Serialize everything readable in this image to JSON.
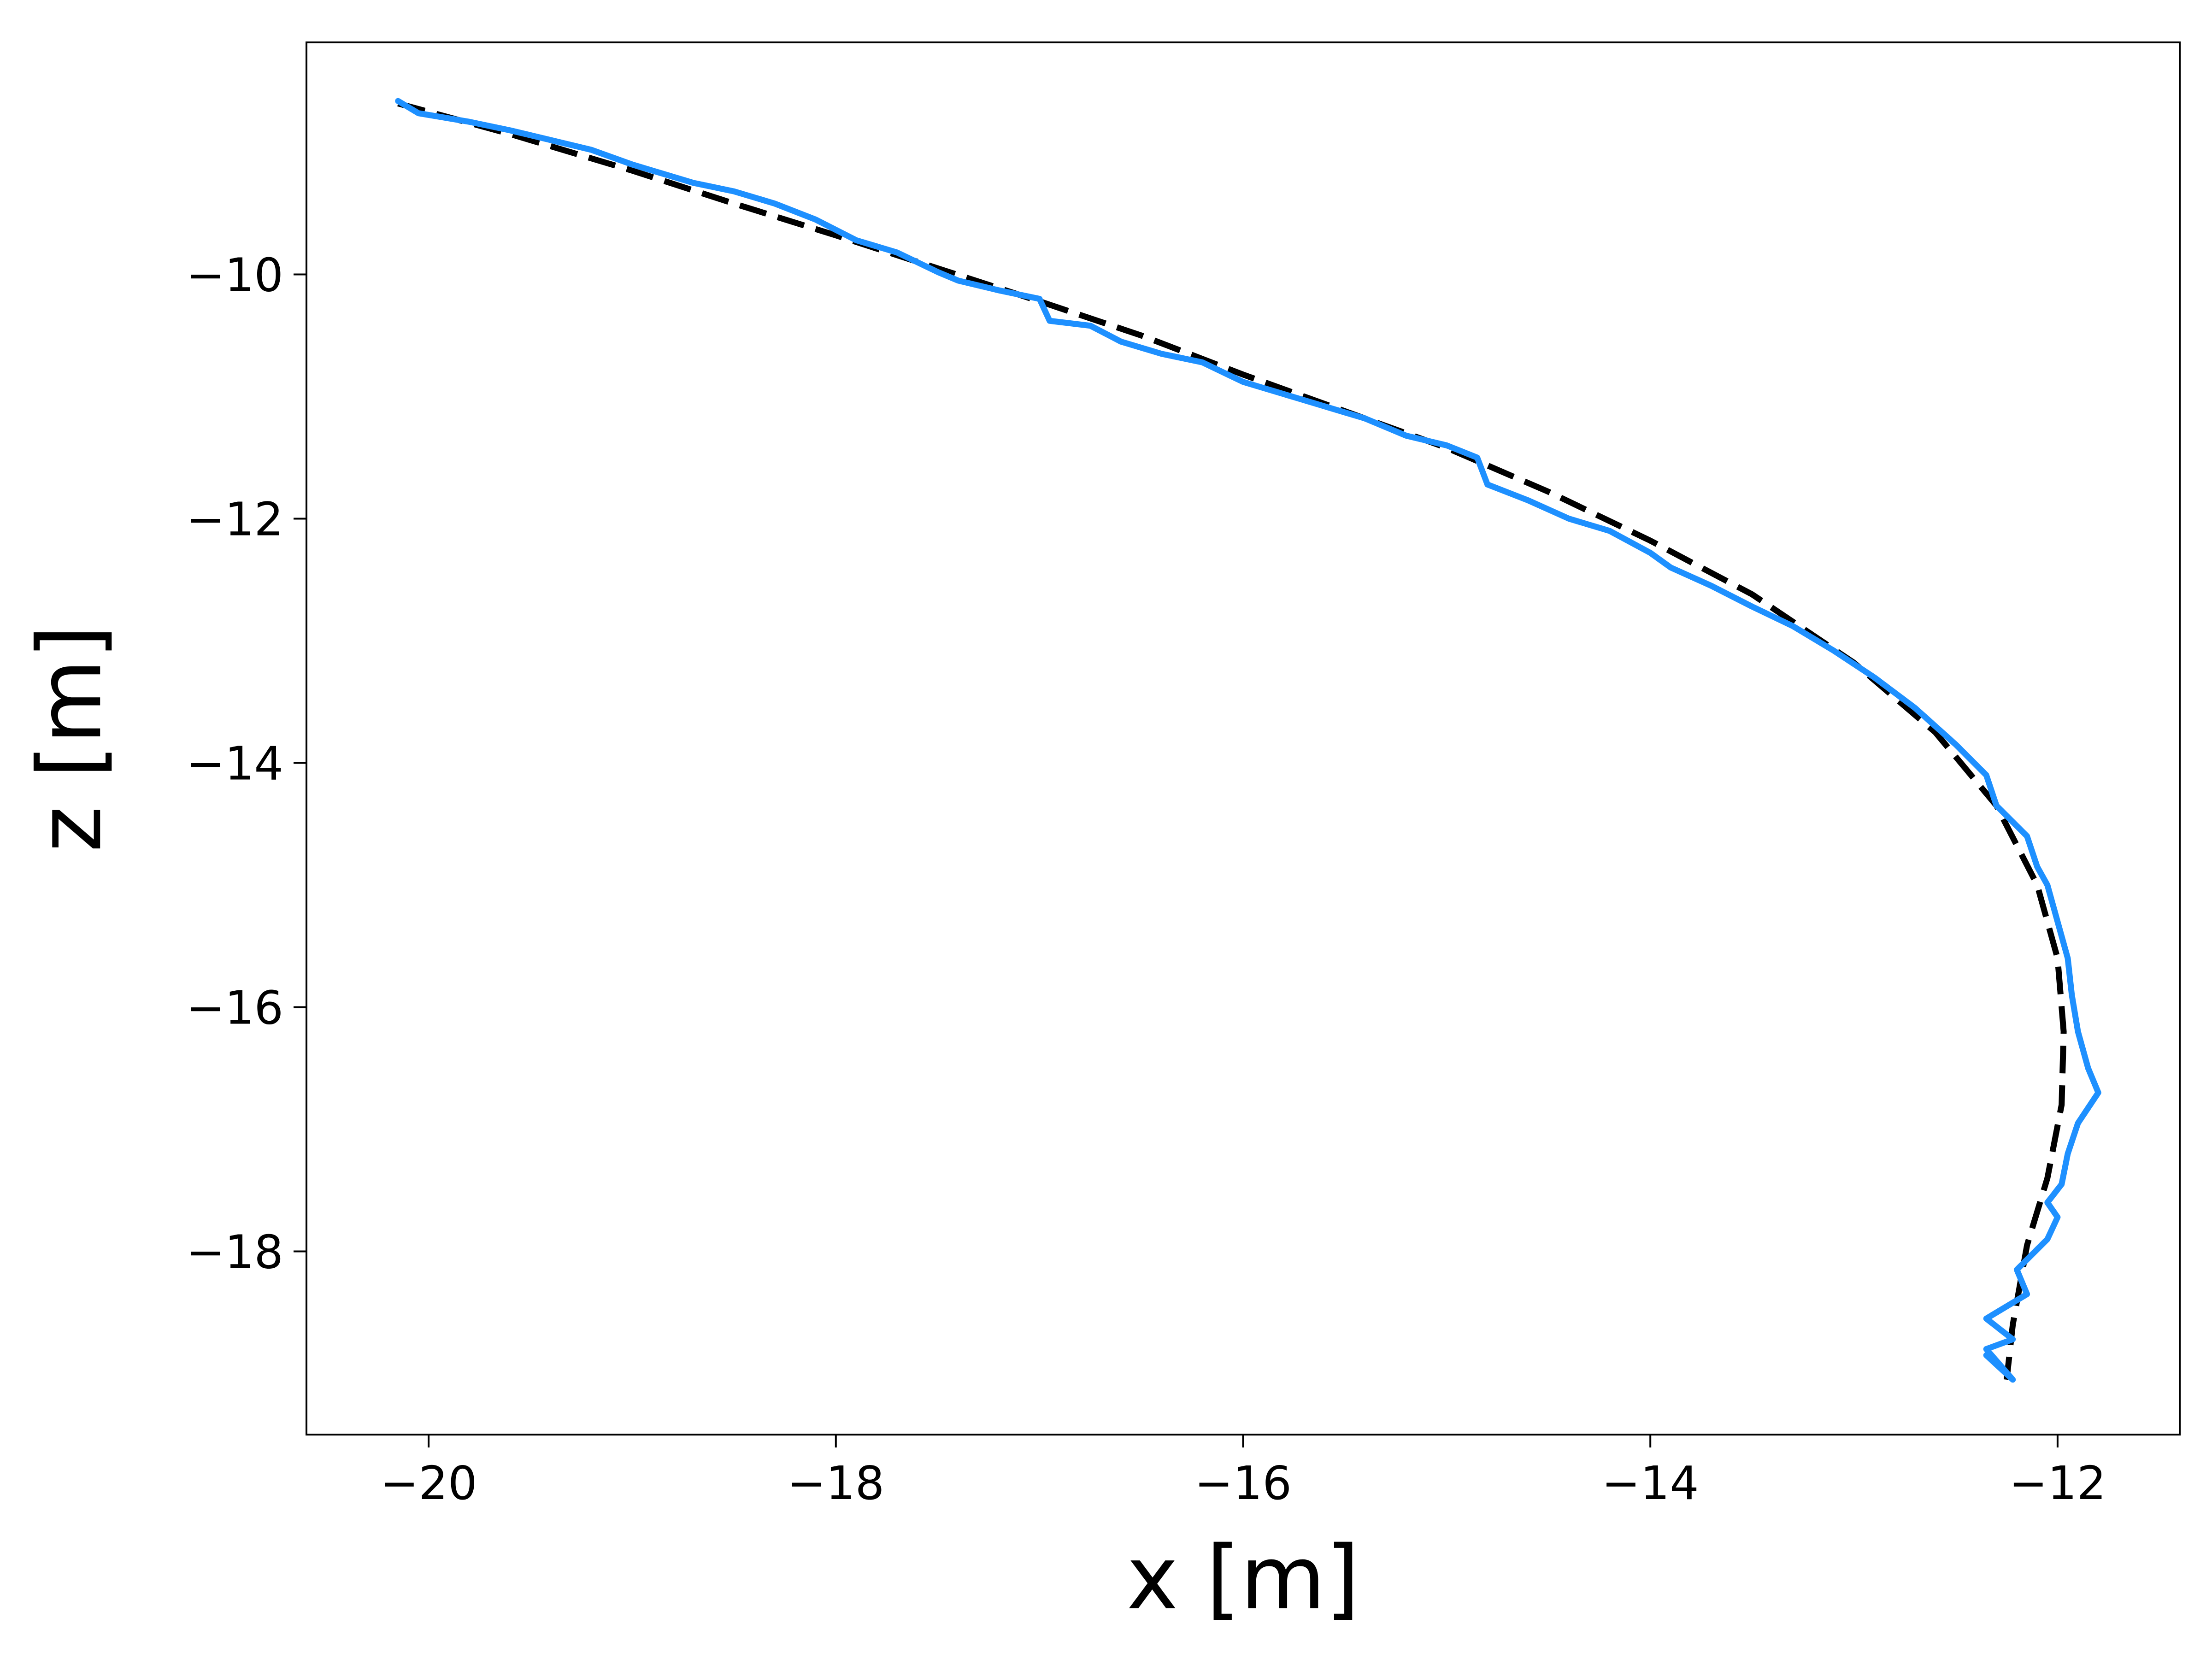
{
  "chart_data": {
    "type": "line",
    "title": "",
    "xlabel": "x [m]",
    "ylabel": "z [m]",
    "xlim": [
      -20.6,
      -11.4
    ],
    "ylim": [
      -19.5,
      -8.1
    ],
    "x_ticks": [
      -20,
      -18,
      -16,
      -14,
      -12
    ],
    "x_tick_labels": [
      "−20",
      "−18",
      "−16",
      "−14",
      "−12"
    ],
    "y_ticks": [
      -10,
      -12,
      -14,
      -16,
      -18
    ],
    "y_tick_labels": [
      "−10",
      "−12",
      "−14",
      "−16",
      "−18"
    ],
    "grid": false,
    "legend": "none",
    "series": [
      {
        "style": "dashed",
        "color": "#000000",
        "points": [
          [
            -20.15,
            -8.6
          ],
          [
            -19.6,
            -8.85
          ],
          [
            -19.0,
            -9.15
          ],
          [
            -18.5,
            -9.42
          ],
          [
            -18.0,
            -9.68
          ],
          [
            -17.5,
            -9.95
          ],
          [
            -17.0,
            -10.22
          ],
          [
            -16.5,
            -10.5
          ],
          [
            -16.0,
            -10.82
          ],
          [
            -15.5,
            -11.12
          ],
          [
            -15.0,
            -11.42
          ],
          [
            -14.5,
            -11.78
          ],
          [
            -14.0,
            -12.18
          ],
          [
            -13.5,
            -12.62
          ],
          [
            -13.0,
            -13.18
          ],
          [
            -12.6,
            -13.75
          ],
          [
            -12.3,
            -14.35
          ],
          [
            -12.1,
            -15.0
          ],
          [
            -12.0,
            -15.6
          ],
          [
            -11.97,
            -16.2
          ],
          [
            -11.98,
            -16.8
          ],
          [
            -12.05,
            -17.4
          ],
          [
            -12.15,
            -17.95
          ],
          [
            -12.22,
            -18.6
          ],
          [
            -12.25,
            -19.05
          ]
        ]
      },
      {
        "style": "solid",
        "color": "#1e90ff",
        "points": [
          [
            -20.15,
            -8.58
          ],
          [
            -20.05,
            -8.68
          ],
          [
            -19.8,
            -8.75
          ],
          [
            -19.6,
            -8.82
          ],
          [
            -19.2,
            -8.98
          ],
          [
            -19.0,
            -9.1
          ],
          [
            -18.7,
            -9.25
          ],
          [
            -18.5,
            -9.32
          ],
          [
            -18.3,
            -9.42
          ],
          [
            -18.1,
            -9.55
          ],
          [
            -17.9,
            -9.72
          ],
          [
            -17.7,
            -9.82
          ],
          [
            -17.5,
            -9.98
          ],
          [
            -17.4,
            -10.05
          ],
          [
            -17.2,
            -10.13
          ],
          [
            -17.0,
            -10.2
          ],
          [
            -16.95,
            -10.38
          ],
          [
            -16.75,
            -10.42
          ],
          [
            -16.6,
            -10.55
          ],
          [
            -16.4,
            -10.65
          ],
          [
            -16.2,
            -10.72
          ],
          [
            -16.0,
            -10.88
          ],
          [
            -15.8,
            -10.98
          ],
          [
            -15.6,
            -11.08
          ],
          [
            -15.4,
            -11.18
          ],
          [
            -15.2,
            -11.32
          ],
          [
            -15.0,
            -11.4
          ],
          [
            -14.85,
            -11.5
          ],
          [
            -14.8,
            -11.72
          ],
          [
            -14.6,
            -11.85
          ],
          [
            -14.4,
            -12.0
          ],
          [
            -14.2,
            -12.1
          ],
          [
            -14.0,
            -12.28
          ],
          [
            -13.9,
            -12.4
          ],
          [
            -13.7,
            -12.55
          ],
          [
            -13.5,
            -12.72
          ],
          [
            -13.3,
            -12.88
          ],
          [
            -13.1,
            -13.08
          ],
          [
            -12.9,
            -13.3
          ],
          [
            -12.7,
            -13.55
          ],
          [
            -12.5,
            -13.85
          ],
          [
            -12.35,
            -14.1
          ],
          [
            -12.3,
            -14.35
          ],
          [
            -12.15,
            -14.6
          ],
          [
            -12.1,
            -14.85
          ],
          [
            -12.05,
            -15.0
          ],
          [
            -12.0,
            -15.3
          ],
          [
            -11.95,
            -15.6
          ],
          [
            -11.93,
            -15.9
          ],
          [
            -11.9,
            -16.2
          ],
          [
            -11.85,
            -16.5
          ],
          [
            -11.8,
            -16.7
          ],
          [
            -11.9,
            -16.95
          ],
          [
            -11.95,
            -17.2
          ],
          [
            -11.98,
            -17.45
          ],
          [
            -12.05,
            -17.6
          ],
          [
            -12.0,
            -17.72
          ],
          [
            -12.05,
            -17.9
          ],
          [
            -12.2,
            -18.15
          ],
          [
            -12.15,
            -18.35
          ],
          [
            -12.35,
            -18.55
          ],
          [
            -12.22,
            -18.72
          ],
          [
            -12.35,
            -18.8
          ],
          [
            -12.22,
            -19.05
          ],
          [
            -12.35,
            -18.85
          ]
        ]
      }
    ]
  }
}
